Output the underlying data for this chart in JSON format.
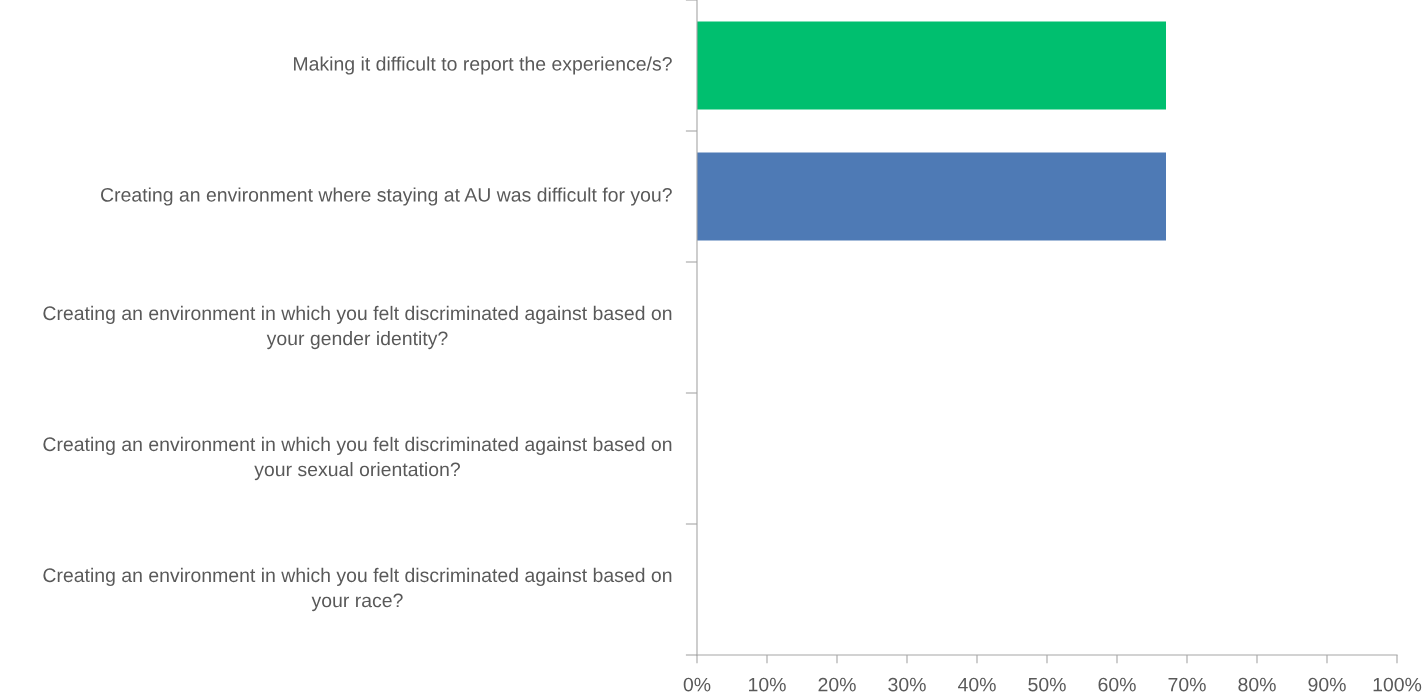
{
  "chart_data": {
    "type": "bar",
    "orientation": "horizontal",
    "categories": [
      "Making it difficult to report the experience/s?",
      "Creating an environment where staying at AU was difficult for you?",
      "Creating an environment in which you felt discriminated against based on your gender identity?",
      "Creating an environment in which you felt discriminated against based on your sexual orientation?",
      "Creating an environment in which you felt discriminated against based on your race?"
    ],
    "values": [
      67,
      67,
      0,
      0,
      0
    ],
    "colors": [
      "#00bf6f",
      "#4e7ab5",
      "#4e7ab5",
      "#4e7ab5",
      "#4e7ab5"
    ],
    "xlim": [
      0,
      100
    ],
    "xticks": [
      {
        "value": 0,
        "label": "0%"
      },
      {
        "value": 10,
        "label": "10%"
      },
      {
        "value": 20,
        "label": "20%"
      },
      {
        "value": 30,
        "label": "30%"
      },
      {
        "value": 40,
        "label": "40%"
      },
      {
        "value": 50,
        "label": "50%"
      },
      {
        "value": 60,
        "label": "60%"
      },
      {
        "value": 70,
        "label": "70%"
      },
      {
        "value": 80,
        "label": "80%"
      },
      {
        "value": 90,
        "label": "90%"
      },
      {
        "value": 100,
        "label": "100%"
      }
    ],
    "grid": false,
    "legend": false
  }
}
